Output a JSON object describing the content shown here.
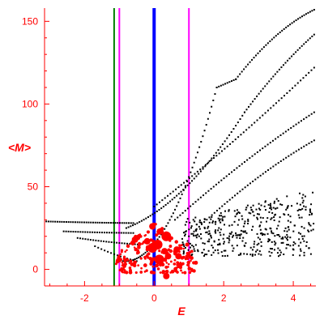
{
  "chart_data": {
    "type": "scatter",
    "xlabel": "E",
    "ylabel": "<M>",
    "xlim": [
      -3.15,
      4.65
    ],
    "ylim": [
      -10,
      158
    ],
    "xticks": [
      -2,
      0,
      2,
      4
    ],
    "xticklabels": [
      "-2",
      "0",
      "2",
      "4"
    ],
    "yticks": [
      0,
      50,
      100,
      150
    ],
    "yticklabels": [
      "0",
      "50",
      "100",
      "150"
    ],
    "grid": false,
    "vertical_lines": [
      {
        "x": -1.15,
        "color": "#008000"
      },
      {
        "x": -1.0,
        "color": "#ff00ff"
      },
      {
        "x": 0.0,
        "color": "#0000ff"
      },
      {
        "x": 1.0,
        "color": "#ff00ff"
      }
    ],
    "series": [
      {
        "color": "#000000",
        "bands": [
          {
            "from": [
              -0.9,
              5
            ],
            "to": [
              1.8,
              110
            ],
            "c": -1.05,
            "n": 55
          },
          {
            "from": [
              1.8,
              110
            ],
            "to": [
              2.35,
              115
            ],
            "c": 0,
            "n": 10
          },
          {
            "from": [
              2.35,
              115
            ],
            "to": [
              4.6,
              157
            ],
            "c": 0.45,
            "n": 40
          },
          {
            "from": [
              -0.8,
              25
            ],
            "to": [
              2.6,
              95
            ],
            "c": -0.6,
            "n": 55
          },
          {
            "from": [
              2.6,
              95
            ],
            "to": [
              4.6,
              142
            ],
            "c": 0.2,
            "n": 35
          },
          {
            "from": [
              0.0,
              38
            ],
            "to": [
              4.6,
              122
            ],
            "c": -0.1,
            "n": 60
          },
          {
            "from": [
              0.6,
              30
            ],
            "to": [
              4.6,
              95
            ],
            "c": 0.15,
            "n": 55
          },
          {
            "from": [
              1.0,
              20
            ],
            "to": [
              4.6,
              78
            ],
            "c": 0.25,
            "n": 50
          },
          {
            "from": [
              -3.1,
              29
            ],
            "to": [
              -0.6,
              28
            ],
            "c": 0.5,
            "n": 40
          },
          {
            "from": [
              -2.6,
              23
            ],
            "to": [
              -0.6,
              22
            ],
            "c": 0.55,
            "n": 30
          },
          {
            "from": [
              -2.2,
              19
            ],
            "to": [
              -0.4,
              15
            ],
            "c": 0.4,
            "n": 25
          },
          {
            "from": [
              -1.7,
              14
            ],
            "to": [
              -0.5,
              5
            ],
            "c": 0.3,
            "n": 14
          }
        ],
        "cloud": {
          "xmin": 0.8,
          "xmax": 4.6,
          "ymin": 8,
          "ymax": 48,
          "n": 420
        }
      },
      {
        "color": "#ff0000",
        "marker_sizes": [
          1.5,
          2.5,
          4.0,
          6.0
        ],
        "points": [
          [
            -0.55,
            18,
            2
          ],
          [
            -0.2,
            17,
            2
          ],
          [
            0.18,
            23,
            2
          ],
          [
            0.35,
            21,
            2
          ],
          [
            -0.05,
            13,
            3
          ],
          [
            0.1,
            15,
            3
          ],
          [
            0.65,
            12,
            2
          ],
          [
            0.3,
            11,
            2
          ],
          [
            0.4,
            8,
            2
          ],
          [
            -0.6,
            16,
            1
          ],
          [
            0.95,
            15,
            1
          ],
          [
            1.2,
            4,
            1
          ],
          [
            -0.2,
            12,
            4
          ],
          [
            0.22,
            4,
            4
          ],
          [
            0.35,
            20,
            3
          ],
          [
            0.7,
            8,
            2
          ],
          [
            -0.05,
            26,
            2
          ],
          [
            0.15,
            6,
            3
          ],
          [
            0.35,
            -4,
            2
          ]
        ],
        "cluster": {
          "xmin": -1.1,
          "xmax": 1.15,
          "ymin": -2,
          "ymax": 28,
          "n": 200
        }
      }
    ]
  }
}
